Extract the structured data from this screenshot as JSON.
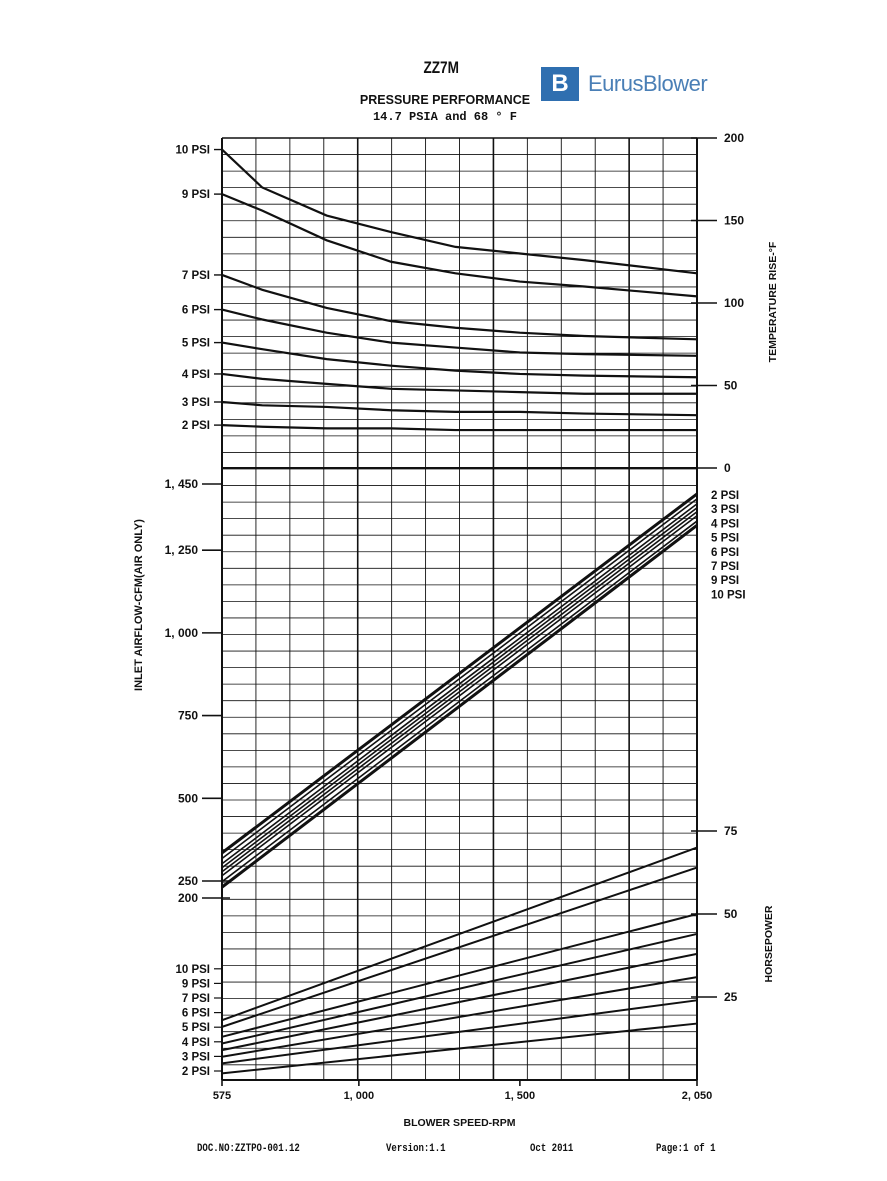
{
  "header": {
    "model": "ZZ7M",
    "subtitle": "PRESSURE PERFORMANCE",
    "conditions": "14.7 PSIA and 68 ° F"
  },
  "logo": {
    "mark": "B",
    "text": "EurusBlower",
    "color": "#2f6fb0"
  },
  "footer": {
    "doc_no": "DOC.NO:ZZTPO-001.12",
    "version": "Version:1.1",
    "date": "Oct 2011",
    "page": "Page:1 of 1"
  },
  "chart_data": [
    {
      "type": "line",
      "panel": "temperature",
      "ylabel": "TEMPERATURE RISE-°F",
      "ylim": [
        0,
        200
      ],
      "yticks": [
        "0",
        "50",
        "100",
        "150",
        "200"
      ],
      "x": [
        575,
        700,
        900,
        1100,
        1300,
        1500,
        1700,
        2050
      ],
      "series": [
        {
          "name": "10 PSI",
          "values": [
            193,
            170,
            153,
            143,
            134,
            130,
            126,
            118
          ]
        },
        {
          "name": "9 PSI",
          "values": [
            166,
            156,
            138,
            125,
            118,
            113,
            110,
            104
          ]
        },
        {
          "name": "7 PSI",
          "values": [
            117,
            108,
            97,
            89,
            85,
            82,
            80,
            78
          ]
        },
        {
          "name": "6 PSI",
          "values": [
            96,
            90,
            82,
            76,
            73,
            70,
            69,
            68
          ]
        },
        {
          "name": "5 PSI",
          "values": [
            76,
            72,
            66,
            62,
            59,
            57,
            56,
            55
          ]
        },
        {
          "name": "4 PSI",
          "values": [
            57,
            54,
            51,
            48,
            47,
            46,
            45,
            45
          ]
        },
        {
          "name": "3 PSI",
          "values": [
            40,
            38,
            37,
            35,
            34,
            34,
            33,
            32
          ]
        },
        {
          "name": "2 PSI",
          "values": [
            26,
            25,
            24,
            24,
            23,
            23,
            23,
            23
          ]
        }
      ]
    },
    {
      "type": "line",
      "panel": "airflow",
      "ylabel": "INLET AIRFLOW-CFM(AIR ONLY)",
      "ytick_values": [
        200,
        250,
        500,
        750,
        1000,
        1250,
        1450
      ],
      "yticks": [
        "200",
        "250",
        "500",
        "750",
        "1, 000",
        "1, 250",
        "1, 450"
      ],
      "x": [
        575,
        2050
      ],
      "series": [
        {
          "name": "2 PSI",
          "values": [
            335,
            1420
          ]
        },
        {
          "name": "3 PSI",
          "values": [
            318,
            1405
          ]
        },
        {
          "name": "4 PSI",
          "values": [
            302,
            1390
          ]
        },
        {
          "name": "5 PSI",
          "values": [
            290,
            1378
          ]
        },
        {
          "name": "6 PSI",
          "values": [
            278,
            1366
          ]
        },
        {
          "name": "7 PSI",
          "values": [
            266,
            1354
          ]
        },
        {
          "name": "9 PSI",
          "values": [
            248,
            1338
          ]
        },
        {
          "name": "10 PSI",
          "values": [
            232,
            1325
          ]
        }
      ]
    },
    {
      "type": "line",
      "panel": "horsepower",
      "ylabel": "HORSEPOWER",
      "ylim": [
        0,
        75
      ],
      "yticks": [
        "25",
        "50",
        "75"
      ],
      "x": [
        575,
        2050
      ],
      "series": [
        {
          "name": "2 PSI",
          "values": [
            2,
            17
          ]
        },
        {
          "name": "3 PSI",
          "values": [
            5,
            24
          ]
        },
        {
          "name": "4 PSI",
          "values": [
            7,
            31
          ]
        },
        {
          "name": "5 PSI",
          "values": [
            9,
            38
          ]
        },
        {
          "name": "6 PSI",
          "values": [
            11,
            44
          ]
        },
        {
          "name": "7 PSI",
          "values": [
            13,
            50
          ]
        },
        {
          "name": "9 PSI",
          "values": [
            16,
            64
          ]
        },
        {
          "name": "10 PSI",
          "values": [
            18,
            70
          ]
        }
      ]
    }
  ],
  "xaxis": {
    "label": "BLOWER SPEED-RPM",
    "xlim": [
      575,
      2050
    ],
    "tick_values": [
      575,
      1000,
      1500,
      2050
    ],
    "ticks": [
      "575",
      "1, 000",
      "1, 500",
      "2, 050"
    ]
  }
}
